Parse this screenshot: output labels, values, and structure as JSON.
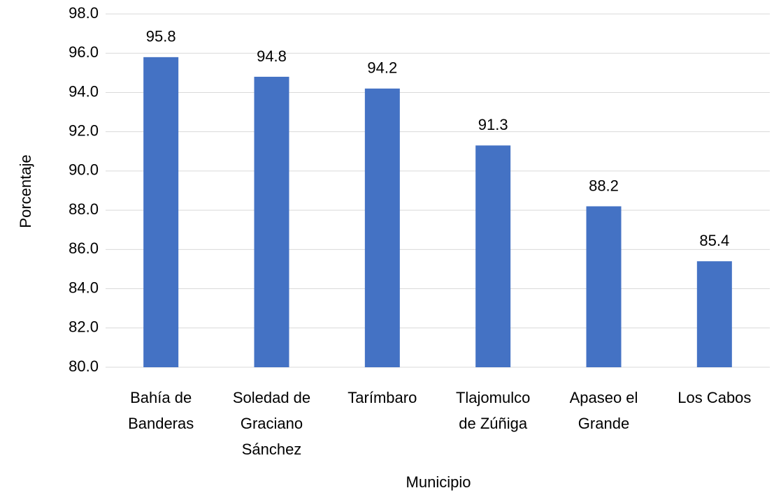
{
  "chart_data": {
    "type": "bar",
    "x_label": "Municipio",
    "y_label": "Porcentaje",
    "categories": [
      "Bahía de Banderas",
      "Soledad de Graciano Sánchez",
      "Tarímbaro",
      "Tlajomulco de Zúñiga",
      "Apaseo el Grande",
      "Los Cabos"
    ],
    "values": [
      95.8,
      94.8,
      94.2,
      91.3,
      88.2,
      85.4
    ],
    "color": "#4472c4",
    "ylim": [
      80,
      98
    ],
    "yticks": [
      {
        "value": 80,
        "label": "80.0"
      },
      {
        "value": 82,
        "label": "82.0"
      },
      {
        "value": 84,
        "label": "84.0"
      },
      {
        "value": 86,
        "label": "86.0"
      },
      {
        "value": 88,
        "label": "88.0"
      },
      {
        "value": 90,
        "label": "90.0"
      },
      {
        "value": 92,
        "label": "92.0"
      },
      {
        "value": 94,
        "label": "94.0"
      },
      {
        "value": 96,
        "label": "96.0"
      },
      {
        "value": 98,
        "label": "98.0"
      }
    ],
    "grid": true
  }
}
